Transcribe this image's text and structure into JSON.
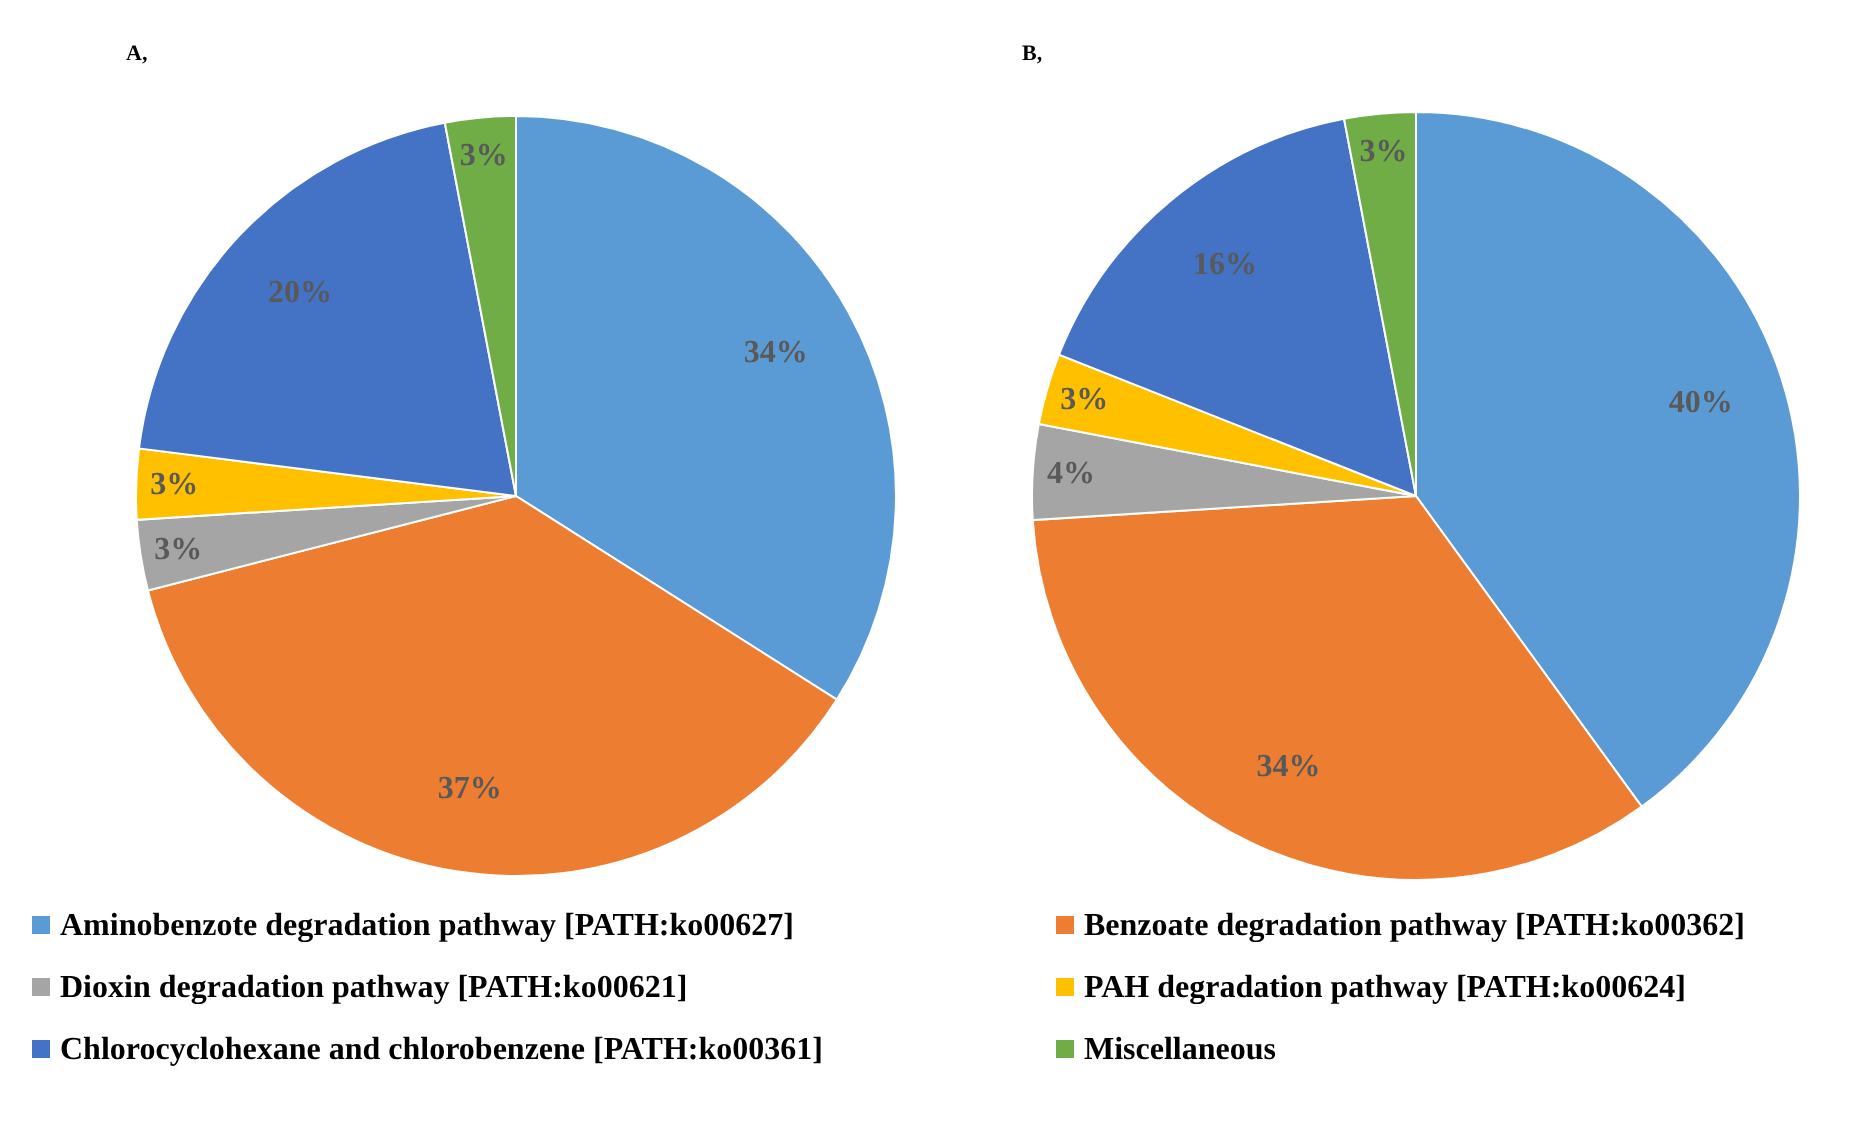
{
  "chart_data": [
    {
      "type": "pie",
      "title": "A,",
      "categories": [
        "Aminobenzote degradation pathway [PATH:ko00627]",
        "Benzoate degradation pathway [PATH:ko00362]",
        "Dioxin degradation pathway [PATH:ko00621]",
        "PAH degradation pathway [PATH:ko00624]",
        "Chlorocyclohexane and chlorobenzene [PATH:ko00361]",
        "Miscellaneous"
      ],
      "values": [
        34,
        37,
        3,
        3,
        20,
        3
      ],
      "colors": [
        "#5b9bd5",
        "#ed7d31",
        "#a5a5a5",
        "#ffc000",
        "#4472c4",
        "#70ad47"
      ],
      "value_labels": [
        "34%",
        "37%",
        "3%",
        "3%",
        "20%",
        "3%"
      ],
      "legend": "bottom"
    },
    {
      "type": "pie",
      "title": "B,",
      "categories": [
        null,
        null,
        null,
        null,
        null,
        null
      ],
      "values": [
        40,
        34,
        4,
        3,
        16,
        3
      ],
      "colors": [
        "#5b9bd5",
        "#ed7d31",
        "#a5a5a5",
        "#ffc000",
        "#4472c4",
        "#70ad47"
      ],
      "value_labels": [
        "40%",
        "34%",
        "4%",
        "3%",
        "16%",
        "3%"
      ]
    }
  ]
}
